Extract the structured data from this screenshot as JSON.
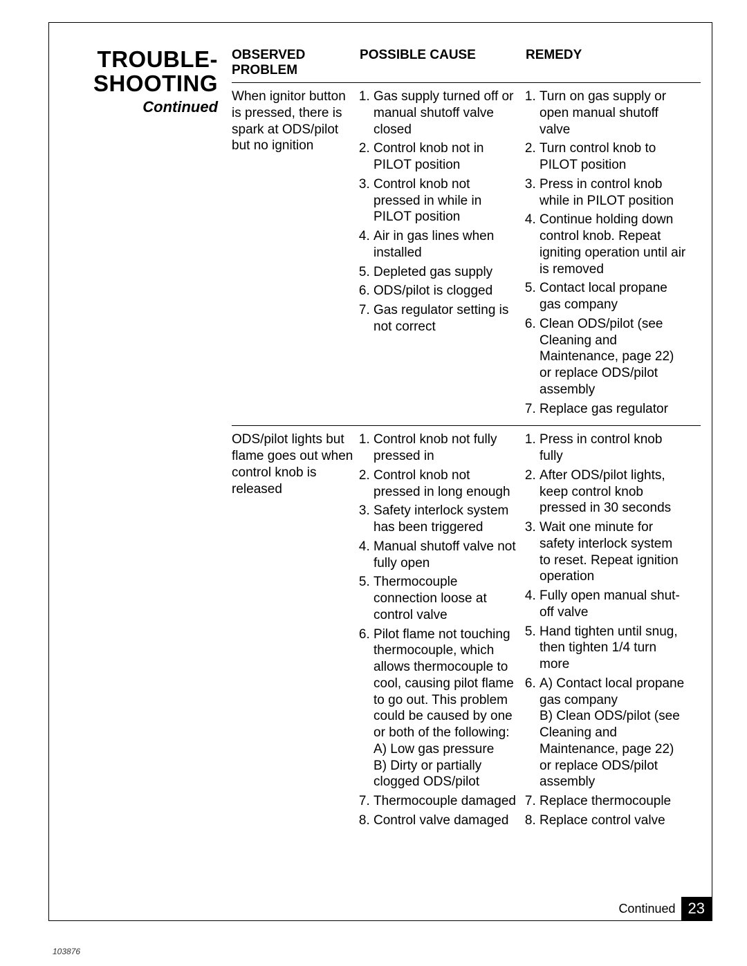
{
  "heading": {
    "line1": "TROUBLE-",
    "line2": "SHOOTING",
    "subtitle": "Continued"
  },
  "columns": {
    "problem": "OBSERVED PROBLEM",
    "cause": "POSSIBLE CAUSE",
    "remedy": "REMEDY"
  },
  "sections": [
    {
      "problem": "When ignitor button is pressed, there is spark at ODS/pilot but no ignition",
      "causes": [
        "Gas supply turned off or manual shutoff valve closed",
        "Control knob not in PILOT position",
        "Control knob not pressed in while in PILOT position",
        "Air in gas lines when installed",
        "Depleted gas supply",
        "ODS/pilot is clogged",
        "Gas regulator setting is not correct"
      ],
      "remedies": [
        "Turn on gas supply or open manual shutoff valve",
        "Turn control knob to PILOT position",
        "Press in control knob while in PILOT position",
        "Continue holding down control knob. Repeat igniting operation until air is removed",
        "Contact local propane gas company",
        "Clean ODS/pilot (see Cleaning and Maintenance, page 22) or replace ODS/pilot assembly",
        "Replace gas regulator"
      ]
    },
    {
      "problem": "ODS/pilot lights but flame goes out when control knob is released",
      "causes": [
        "Control knob not fully pressed in",
        "Control knob not pressed in long enough",
        "Safety interlock system has been triggered",
        "Manual shutoff valve not fully open",
        "Thermocouple connection loose at control valve",
        "Pilot flame not touching thermocouple, which allows thermocouple to cool, causing pilot flame to go out. This problem could be caused by one or both of the following:\nA) Low gas pressure\nB) Dirty or partially clogged ODS/pilot",
        "Thermocouple damaged",
        "Control valve damaged"
      ],
      "remedies": [
        "Press in control knob fully",
        "After ODS/pilot lights, keep control knob pressed in 30 seconds",
        "Wait one minute for safety interlock system to reset. Repeat ignition operation",
        "Fully open manual shut-off valve",
        "Hand tighten until snug, then tighten 1/4 turn more",
        "A) Contact local propane gas company\nB) Clean ODS/pilot (see Cleaning and Maintenance, page 22) or replace ODS/pilot assembly",
        "Replace thermocouple",
        "Replace control valve"
      ]
    }
  ],
  "footer": {
    "continued": "Continued",
    "page": "23",
    "docid": "103876"
  }
}
